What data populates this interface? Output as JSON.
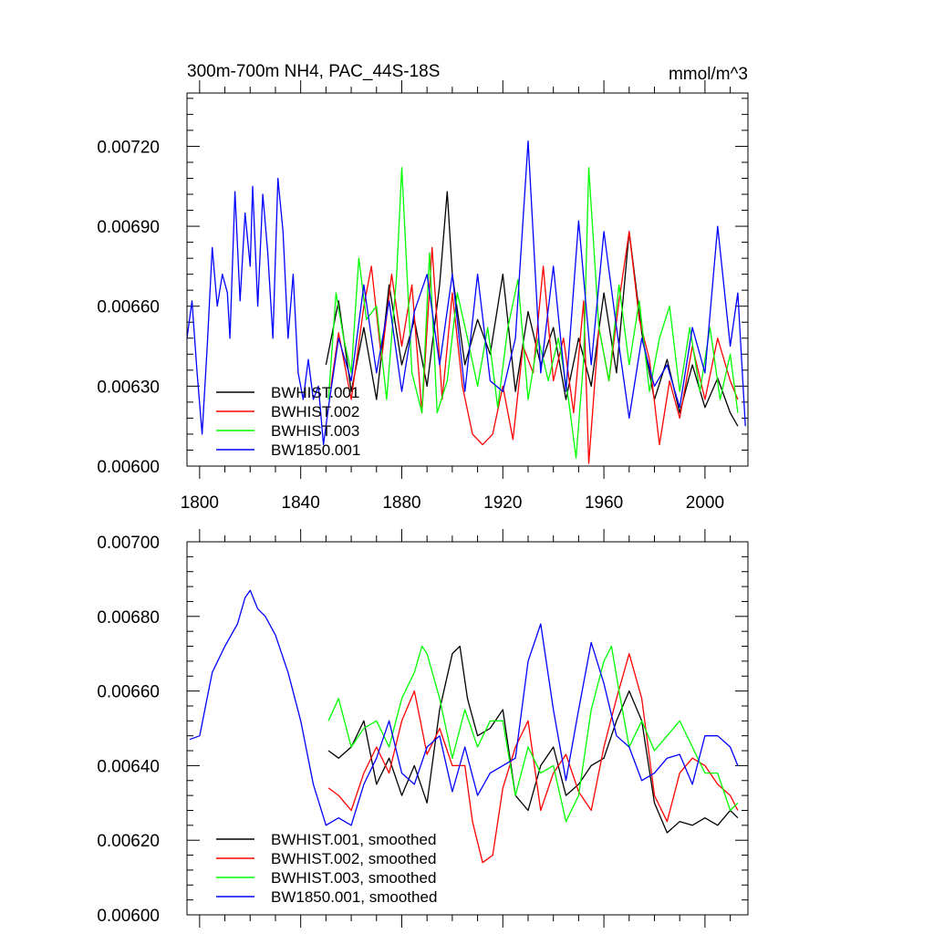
{
  "colors": {
    "BWHIST.001": "#000000",
    "BWHIST.002": "#ff0000",
    "BWHIST.003": "#00ff00",
    "BW1850.001": "#0000ff"
  },
  "chart_data": [
    {
      "type": "line",
      "title": "300m-700m NH4, PAC_44S-18S",
      "units": "mmol/m^3",
      "xlim": [
        1795,
        2017
      ],
      "ylim": [
        0.006,
        0.0074
      ],
      "x_ticks": [
        1800,
        1840,
        1880,
        1920,
        1960,
        2000
      ],
      "x_tick_labels": [
        "1800",
        "1840",
        "1880",
        "1920",
        "1960",
        "2000"
      ],
      "y_ticks": [
        0.006,
        0.0063,
        0.0066,
        0.0069,
        0.0072
      ],
      "y_tick_labels": [
        "0.00600",
        "0.00630",
        "0.00660",
        "0.00690",
        "0.00720"
      ],
      "legend": [
        "BWHIST.001",
        "BWHIST.002",
        "BWHIST.003",
        "BW1850.001"
      ],
      "legend_position": "lower-left",
      "series": [
        {
          "name": "BWHIST.001",
          "color_key": "BWHIST.001",
          "x": [
            1850,
            1855,
            1860,
            1865,
            1870,
            1875,
            1880,
            1885,
            1890,
            1895,
            1898,
            1900,
            1905,
            1910,
            1915,
            1920,
            1925,
            1930,
            1935,
            1940,
            1945,
            1950,
            1955,
            1960,
            1965,
            1970,
            1975,
            1980,
            1985,
            1990,
            1995,
            2000,
            2005,
            2010,
            2013
          ],
          "y": [
            0.00638,
            0.00662,
            0.00628,
            0.00652,
            0.00625,
            0.00668,
            0.00638,
            0.00655,
            0.0063,
            0.00668,
            0.00703,
            0.00672,
            0.00638,
            0.00655,
            0.00642,
            0.00672,
            0.00628,
            0.00658,
            0.00638,
            0.00652,
            0.00625,
            0.00648,
            0.0063,
            0.00665,
            0.00635,
            0.00688,
            0.0065,
            0.00625,
            0.0064,
            0.0062,
            0.00638,
            0.00622,
            0.00633,
            0.0062,
            0.00615
          ]
        },
        {
          "name": "BWHIST.002",
          "color_key": "BWHIST.002",
          "x": [
            1852,
            1855,
            1860,
            1865,
            1868,
            1872,
            1876,
            1880,
            1884,
            1888,
            1892,
            1896,
            1900,
            1904,
            1908,
            1912,
            1916,
            1920,
            1924,
            1928,
            1932,
            1936,
            1940,
            1944,
            1948,
            1952,
            1954,
            1958,
            1962,
            1966,
            1970,
            1974,
            1978,
            1982,
            1986,
            1990,
            1995,
            2000,
            2005,
            2010,
            2013
          ],
          "y": [
            0.0063,
            0.0065,
            0.00625,
            0.0066,
            0.00675,
            0.0064,
            0.00672,
            0.00645,
            0.00668,
            0.0062,
            0.00682,
            0.00625,
            0.00665,
            0.0063,
            0.00612,
            0.00608,
            0.00612,
            0.0063,
            0.0061,
            0.00645,
            0.00635,
            0.00675,
            0.00632,
            0.00648,
            0.0062,
            0.00662,
            0.00601,
            0.00652,
            0.00632,
            0.00662,
            0.00688,
            0.00655,
            0.0064,
            0.00608,
            0.00632,
            0.00618,
            0.00645,
            0.00625,
            0.00648,
            0.00632,
            0.00625
          ]
        },
        {
          "name": "BWHIST.003",
          "color_key": "BWHIST.003",
          "x": [
            1851,
            1854,
            1857,
            1860,
            1863,
            1866,
            1870,
            1874,
            1878,
            1880,
            1884,
            1888,
            1891,
            1894,
            1898,
            1902,
            1906,
            1910,
            1914,
            1918,
            1922,
            1926,
            1930,
            1934,
            1938,
            1942,
            1946,
            1949,
            1952,
            1954,
            1958,
            1962,
            1966,
            1970,
            1974,
            1978,
            1982,
            1986,
            1990,
            1994,
            1998,
            2002,
            2006,
            2010,
            2013
          ],
          "y": [
            0.00625,
            0.00665,
            0.00648,
            0.00635,
            0.00678,
            0.00655,
            0.0066,
            0.00625,
            0.00672,
            0.00712,
            0.00635,
            0.0062,
            0.0068,
            0.0062,
            0.00632,
            0.00665,
            0.00648,
            0.0063,
            0.00652,
            0.00622,
            0.00652,
            0.0067,
            0.00625,
            0.00648,
            0.00632,
            0.00648,
            0.00625,
            0.00603,
            0.0064,
            0.00712,
            0.00652,
            0.00632,
            0.00668,
            0.00638,
            0.00662,
            0.00628,
            0.00648,
            0.0066,
            0.00628,
            0.00652,
            0.00628,
            0.00652,
            0.00625,
            0.00642,
            0.0062
          ]
        },
        {
          "name": "BW1850.001",
          "color_key": "BW1850.001",
          "x": [
            1795,
            1797,
            1799,
            1801,
            1803,
            1805,
            1807,
            1809,
            1811,
            1812,
            1814,
            1816,
            1818,
            1820,
            1821,
            1823,
            1825,
            1827,
            1829,
            1831,
            1833,
            1835,
            1837,
            1839,
            1841,
            1843,
            1845,
            1847,
            1849,
            1851,
            1855,
            1860,
            1865,
            1870,
            1875,
            1880,
            1885,
            1890,
            1895,
            1900,
            1905,
            1910,
            1915,
            1920,
            1925,
            1930,
            1935,
            1940,
            1945,
            1950,
            1955,
            1960,
            1965,
            1970,
            1975,
            1980,
            1985,
            1990,
            1995,
            2000,
            2005,
            2010,
            2013,
            2016
          ],
          "y": [
            0.00648,
            0.00662,
            0.00635,
            0.00612,
            0.00645,
            0.00682,
            0.0066,
            0.00672,
            0.00665,
            0.00648,
            0.00703,
            0.00662,
            0.00695,
            0.00675,
            0.00705,
            0.0066,
            0.00702,
            0.0068,
            0.00648,
            0.00708,
            0.00688,
            0.00648,
            0.00672,
            0.00635,
            0.00625,
            0.0064,
            0.00625,
            0.0063,
            0.00608,
            0.00622,
            0.00648,
            0.00632,
            0.00668,
            0.00635,
            0.00662,
            0.00628,
            0.00658,
            0.00672,
            0.00638,
            0.00672,
            0.00628,
            0.00672,
            0.00632,
            0.00628,
            0.00648,
            0.00722,
            0.00635,
            0.00675,
            0.00628,
            0.00692,
            0.00638,
            0.00688,
            0.00652,
            0.00618,
            0.00648,
            0.0063,
            0.00638,
            0.00622,
            0.00652,
            0.00635,
            0.0069,
            0.00645,
            0.00665,
            0.00615
          ]
        }
      ]
    },
    {
      "type": "line",
      "title": "",
      "xlim": [
        1795,
        2017
      ],
      "ylim": [
        0.006,
        0.007
      ],
      "x_ticks": [
        1800,
        1840,
        1880,
        1920,
        1960,
        2000
      ],
      "y_ticks": [
        0.006,
        0.0062,
        0.0064,
        0.0066,
        0.0068,
        0.007
      ],
      "y_tick_labels": [
        "0.00600",
        "0.00620",
        "0.00640",
        "0.00660",
        "0.00680",
        "0.00700"
      ],
      "legend": [
        "BWHIST.001, smoothed",
        "BWHIST.002, smoothed",
        "BWHIST.003, smoothed",
        "BW1850.001, smoothed"
      ],
      "legend_position": "lower-left",
      "series": [
        {
          "name": "BWHIST.001, smoothed",
          "color_key": "BWHIST.001",
          "x": [
            1851,
            1855,
            1860,
            1865,
            1870,
            1875,
            1880,
            1885,
            1890,
            1895,
            1900,
            1903,
            1906,
            1910,
            1915,
            1920,
            1925,
            1930,
            1935,
            1940,
            1945,
            1950,
            1955,
            1960,
            1965,
            1970,
            1975,
            1980,
            1985,
            1990,
            1995,
            2000,
            2005,
            2010,
            2013
          ],
          "y": [
            0.00644,
            0.00642,
            0.00645,
            0.00652,
            0.00635,
            0.00642,
            0.00632,
            0.0064,
            0.0063,
            0.00655,
            0.0067,
            0.00672,
            0.00658,
            0.00648,
            0.0065,
            0.00655,
            0.00632,
            0.00628,
            0.0064,
            0.00645,
            0.00632,
            0.00635,
            0.0064,
            0.00642,
            0.00652,
            0.0066,
            0.00652,
            0.0063,
            0.00622,
            0.00625,
            0.00624,
            0.00626,
            0.00624,
            0.00628,
            0.00626
          ]
        },
        {
          "name": "BWHIST.002, smoothed",
          "color_key": "BWHIST.002",
          "x": [
            1851,
            1855,
            1860,
            1865,
            1870,
            1875,
            1880,
            1885,
            1890,
            1895,
            1900,
            1905,
            1908,
            1912,
            1916,
            1920,
            1925,
            1930,
            1935,
            1940,
            1945,
            1950,
            1955,
            1960,
            1965,
            1970,
            1975,
            1980,
            1985,
            1990,
            1995,
            2000,
            2005,
            2010,
            2013
          ],
          "y": [
            0.00634,
            0.00632,
            0.00628,
            0.00638,
            0.00645,
            0.00638,
            0.00652,
            0.0066,
            0.00643,
            0.0065,
            0.0064,
            0.0064,
            0.00625,
            0.00614,
            0.00616,
            0.00634,
            0.00645,
            0.00652,
            0.00628,
            0.00638,
            0.00643,
            0.00633,
            0.00628,
            0.00645,
            0.00658,
            0.0067,
            0.00658,
            0.00632,
            0.00625,
            0.00638,
            0.00642,
            0.0064,
            0.00635,
            0.00632,
            0.00628
          ]
        },
        {
          "name": "BWHIST.003, smoothed",
          "color_key": "BWHIST.003",
          "x": [
            1851,
            1855,
            1860,
            1865,
            1870,
            1875,
            1880,
            1885,
            1888,
            1890,
            1895,
            1900,
            1905,
            1910,
            1915,
            1920,
            1925,
            1930,
            1935,
            1940,
            1945,
            1950,
            1955,
            1960,
            1963,
            1966,
            1970,
            1975,
            1980,
            1985,
            1990,
            1995,
            2000,
            2005,
            2010,
            2013
          ],
          "y": [
            0.00652,
            0.00658,
            0.00645,
            0.0065,
            0.00652,
            0.00645,
            0.00658,
            0.00665,
            0.00672,
            0.0067,
            0.00658,
            0.00642,
            0.00655,
            0.00645,
            0.00652,
            0.00652,
            0.00632,
            0.00645,
            0.00638,
            0.0064,
            0.00625,
            0.00632,
            0.00655,
            0.00668,
            0.00672,
            0.0066,
            0.00645,
            0.00652,
            0.00644,
            0.00648,
            0.00652,
            0.00645,
            0.00638,
            0.00638,
            0.00628,
            0.0063
          ]
        },
        {
          "name": "BW1850.001, smoothed",
          "color_key": "BW1850.001",
          "x": [
            1796,
            1800,
            1805,
            1810,
            1815,
            1818,
            1820,
            1823,
            1826,
            1830,
            1835,
            1840,
            1845,
            1850,
            1855,
            1860,
            1865,
            1870,
            1875,
            1880,
            1885,
            1890,
            1895,
            1900,
            1905,
            1910,
            1915,
            1920,
            1925,
            1930,
            1935,
            1940,
            1945,
            1950,
            1955,
            1960,
            1965,
            1970,
            1975,
            1980,
            1985,
            1990,
            1995,
            2000,
            2005,
            2010,
            2013
          ],
          "y": [
            0.00647,
            0.00648,
            0.00665,
            0.00672,
            0.00678,
            0.00685,
            0.00687,
            0.00682,
            0.0068,
            0.00675,
            0.00665,
            0.00652,
            0.00635,
            0.00624,
            0.00626,
            0.00624,
            0.00635,
            0.00642,
            0.00652,
            0.00638,
            0.00635,
            0.00645,
            0.00648,
            0.00633,
            0.00645,
            0.00632,
            0.00638,
            0.0064,
            0.00642,
            0.00668,
            0.00678,
            0.00655,
            0.00636,
            0.00655,
            0.00673,
            0.00662,
            0.00648,
            0.00645,
            0.00636,
            0.00638,
            0.00642,
            0.00643,
            0.00635,
            0.00648,
            0.00648,
            0.00645,
            0.0064
          ]
        }
      ]
    }
  ]
}
